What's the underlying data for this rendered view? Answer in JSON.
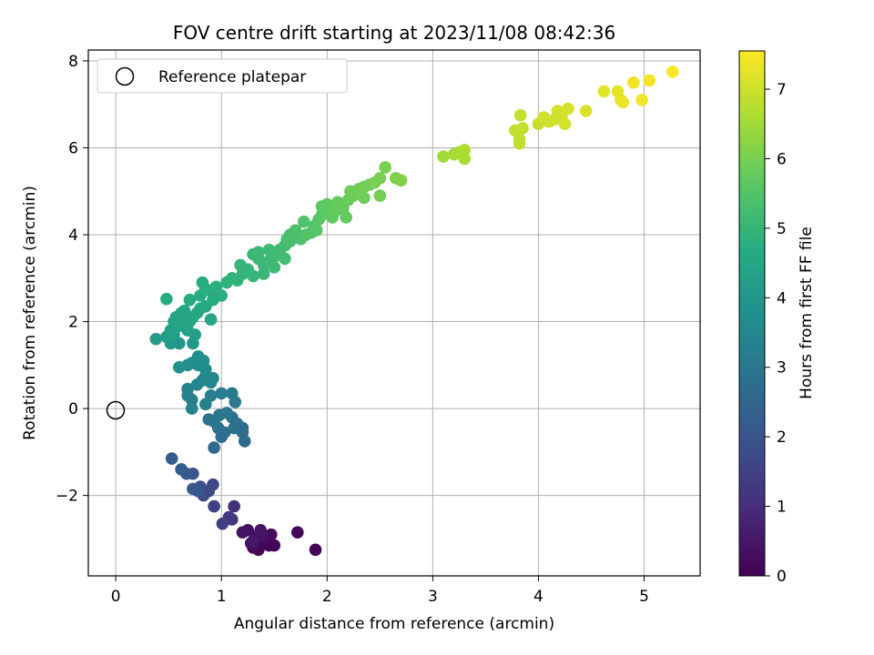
{
  "chart_data": {
    "type": "scatter",
    "title": "FOV centre drift starting at 2023/11/08 08:42:36",
    "xlabel": "Angular distance from reference (arcmin)",
    "ylabel": "Rotation from reference (arcmin)",
    "xlim": [
      -0.26,
      5.53
    ],
    "ylim": [
      -3.85,
      8.25
    ],
    "xticks": [
      "0",
      "1",
      "2",
      "3",
      "4",
      "5"
    ],
    "yticks": [
      "−2",
      "0",
      "2",
      "4",
      "6",
      "8"
    ],
    "grid": true,
    "legend": {
      "placement": "upper-left",
      "entries": [
        "Reference platepar"
      ]
    },
    "reference_point": {
      "label": "Reference platepar",
      "x": 0.0,
      "y": 0.0
    },
    "colorbar": {
      "label": "Hours from first FF file",
      "range": [
        0,
        7.55
      ],
      "ticks": [
        "0",
        "1",
        "2",
        "3",
        "4",
        "5",
        "6",
        "7"
      ],
      "colormap": "viridis"
    },
    "points": [
      [
        1.89,
        -3.25,
        0.05
      ],
      [
        1.72,
        -2.85,
        0.15
      ],
      [
        1.5,
        -3.15,
        0.1
      ],
      [
        1.45,
        -3.15,
        0.12
      ],
      [
        1.47,
        -2.9,
        0.2
      ],
      [
        1.38,
        -3.05,
        0.15
      ],
      [
        1.35,
        -3.25,
        0.1
      ],
      [
        1.3,
        -3.2,
        0.18
      ],
      [
        1.33,
        -2.95,
        0.25
      ],
      [
        1.25,
        -2.8,
        0.3
      ],
      [
        1.28,
        -3.1,
        0.22
      ],
      [
        1.2,
        -2.85,
        0.4
      ],
      [
        1.4,
        -2.95,
        0.35
      ],
      [
        1.37,
        -2.8,
        0.45
      ],
      [
        1.3,
        -3.05,
        0.5
      ],
      [
        1.12,
        -2.25,
        1.1
      ],
      [
        1.1,
        -2.55,
        1.2
      ],
      [
        1.07,
        -2.5,
        1.3
      ],
      [
        1.01,
        -2.65,
        1.4
      ],
      [
        0.93,
        -2.25,
        1.5
      ],
      [
        0.92,
        -1.75,
        1.6
      ],
      [
        0.88,
        -1.9,
        1.7
      ],
      [
        0.83,
        -2.0,
        1.8
      ],
      [
        0.8,
        -1.8,
        1.9
      ],
      [
        0.73,
        -1.5,
        2.0
      ],
      [
        0.73,
        -1.85,
        2.1
      ],
      [
        0.67,
        -1.5,
        2.15
      ],
      [
        0.62,
        -1.4,
        2.2
      ],
      [
        0.53,
        -1.15,
        2.25
      ],
      [
        0.78,
        -1.9,
        2.05
      ],
      [
        0.93,
        -0.9,
        2.6
      ],
      [
        1.0,
        -0.65,
        2.7
      ],
      [
        1.03,
        -0.55,
        2.75
      ],
      [
        0.97,
        -0.45,
        2.85
      ],
      [
        0.88,
        -0.25,
        2.9
      ],
      [
        0.98,
        -0.15,
        3.0
      ],
      [
        1.1,
        -0.2,
        2.9
      ],
      [
        1.12,
        -0.45,
        2.8
      ],
      [
        1.15,
        -0.35,
        2.85
      ],
      [
        1.2,
        -0.55,
        2.75
      ],
      [
        1.22,
        -0.75,
        2.65
      ],
      [
        1.2,
        -0.45,
        2.7
      ],
      [
        1.05,
        -0.1,
        3.0
      ],
      [
        0.93,
        -0.3,
        2.95
      ],
      [
        1.13,
        0.15,
        3.1
      ],
      [
        1.1,
        0.35,
        3.15
      ],
      [
        1.0,
        0.35,
        3.2
      ],
      [
        0.9,
        0.3,
        3.2
      ],
      [
        0.85,
        0.1,
        3.3
      ],
      [
        0.72,
        0.0,
        3.35
      ],
      [
        0.72,
        0.2,
        3.3
      ],
      [
        0.68,
        0.3,
        3.35
      ],
      [
        0.68,
        0.45,
        3.4
      ],
      [
        0.77,
        0.55,
        3.45
      ],
      [
        0.82,
        0.65,
        3.5
      ],
      [
        0.85,
        0.75,
        3.55
      ],
      [
        0.92,
        0.7,
        3.5
      ],
      [
        0.85,
        0.9,
        3.6
      ],
      [
        0.78,
        1.0,
        3.65
      ],
      [
        0.83,
        1.1,
        3.7
      ],
      [
        0.72,
        1.05,
        3.7
      ],
      [
        0.68,
        1.0,
        3.75
      ],
      [
        0.78,
        1.2,
        3.8
      ],
      [
        0.6,
        0.95,
        3.85
      ],
      [
        0.9,
        0.6,
        3.5
      ],
      [
        0.38,
        1.6,
        4.2
      ],
      [
        0.48,
        1.65,
        4.15
      ],
      [
        0.52,
        1.5,
        4.1
      ],
      [
        0.55,
        1.7,
        4.25
      ],
      [
        0.6,
        1.5,
        4.05
      ],
      [
        0.73,
        1.5,
        4.0
      ],
      [
        0.75,
        1.7,
        4.2
      ],
      [
        0.55,
        2.0,
        4.35
      ],
      [
        0.52,
        1.8,
        4.3
      ],
      [
        0.57,
        2.1,
        4.4
      ],
      [
        0.6,
        1.9,
        4.4
      ],
      [
        0.62,
        2.2,
        4.45
      ],
      [
        0.65,
        2.0,
        4.45
      ],
      [
        0.68,
        1.8,
        4.35
      ],
      [
        0.7,
        2.0,
        4.5
      ],
      [
        0.73,
        2.1,
        4.5
      ],
      [
        0.77,
        2.2,
        4.55
      ],
      [
        0.8,
        2.3,
        4.6
      ],
      [
        0.85,
        2.35,
        4.6
      ],
      [
        0.9,
        2.05,
        4.5
      ],
      [
        0.7,
        2.5,
        4.65
      ],
      [
        0.8,
        2.6,
        4.7
      ],
      [
        0.85,
        2.75,
        4.75
      ],
      [
        0.9,
        2.7,
        4.75
      ],
      [
        0.95,
        2.8,
        4.8
      ],
      [
        1.0,
        2.6,
        4.8
      ],
      [
        1.05,
        2.9,
        4.85
      ],
      [
        1.1,
        3.0,
        4.9
      ],
      [
        1.15,
        2.95,
        4.9
      ],
      [
        0.82,
        2.9,
        4.7
      ],
      [
        0.48,
        2.52,
        4.7
      ],
      [
        0.65,
        2.25,
        4.5
      ],
      [
        0.92,
        2.5,
        4.65
      ],
      [
        1.2,
        3.1,
        4.95
      ],
      [
        1.18,
        3.3,
        5.0
      ],
      [
        1.25,
        3.2,
        5.0
      ],
      [
        1.3,
        3.05,
        5.0
      ],
      [
        1.3,
        3.55,
        5.05
      ],
      [
        1.35,
        3.45,
        5.1
      ],
      [
        1.4,
        3.3,
        5.1
      ],
      [
        1.35,
        3.6,
        5.1
      ],
      [
        1.4,
        3.1,
        5.05
      ],
      [
        1.45,
        3.4,
        5.15
      ],
      [
        1.45,
        3.65,
        5.15
      ],
      [
        1.5,
        3.5,
        5.2
      ],
      [
        1.5,
        3.25,
        5.15
      ],
      [
        1.55,
        3.55,
        5.2
      ],
      [
        1.6,
        3.45,
        5.25
      ],
      [
        1.6,
        3.75,
        5.25
      ],
      [
        1.65,
        3.85,
        5.3
      ],
      [
        1.65,
        4.0,
        5.35
      ],
      [
        1.62,
        3.9,
        5.3
      ],
      [
        1.7,
        4.1,
        5.4
      ],
      [
        1.75,
        3.9,
        5.4
      ],
      [
        1.78,
        4.3,
        5.45
      ],
      [
        1.8,
        4.0,
        5.45
      ],
      [
        1.85,
        4.05,
        5.5
      ],
      [
        1.88,
        4.2,
        5.5
      ],
      [
        1.9,
        4.1,
        5.55
      ],
      [
        1.92,
        4.35,
        5.55
      ],
      [
        1.95,
        4.45,
        5.6
      ],
      [
        1.95,
        4.65,
        5.65
      ],
      [
        2.0,
        4.5,
        5.65
      ],
      [
        2.03,
        4.6,
        5.7
      ],
      [
        2.05,
        4.4,
        5.7
      ],
      [
        2.08,
        4.55,
        5.75
      ],
      [
        2.1,
        4.75,
        5.8
      ],
      [
        2.15,
        4.7,
        5.8
      ],
      [
        2.15,
        4.6,
        5.75
      ],
      [
        2.18,
        4.4,
        5.75
      ],
      [
        2.2,
        4.8,
        5.85
      ],
      [
        2.22,
        5.0,
        5.85
      ],
      [
        2.25,
        4.9,
        5.85
      ],
      [
        2.3,
        5.05,
        5.9
      ],
      [
        2.35,
        5.1,
        5.95
      ],
      [
        2.35,
        4.85,
        5.9
      ],
      [
        2.4,
        5.15,
        5.95
      ],
      [
        2.45,
        5.2,
        6.0
      ],
      [
        2.5,
        4.9,
        5.95
      ],
      [
        2.5,
        5.3,
        6.0
      ],
      [
        2.55,
        5.55,
        6.0
      ],
      [
        2.65,
        5.3,
        6.05
      ],
      [
        2.7,
        5.25,
        6.1
      ],
      [
        1.55,
        3.65,
        5.2
      ],
      [
        2.0,
        4.7,
        5.7
      ],
      [
        3.1,
        5.8,
        6.5
      ],
      [
        3.2,
        5.85,
        6.55
      ],
      [
        3.25,
        5.9,
        6.6
      ],
      [
        3.3,
        5.75,
        6.6
      ],
      [
        3.3,
        5.95,
        6.65
      ],
      [
        3.78,
        6.4,
        6.85
      ],
      [
        3.82,
        6.1,
        6.85
      ],
      [
        3.85,
        6.45,
        6.9
      ],
      [
        3.83,
        6.75,
        6.9
      ],
      [
        4.0,
        6.55,
        6.95
      ],
      [
        4.05,
        6.7,
        7.0
      ],
      [
        4.1,
        6.6,
        7.0
      ],
      [
        4.18,
        6.85,
        7.05
      ],
      [
        4.22,
        6.75,
        7.05
      ],
      [
        4.25,
        6.55,
        7.1
      ],
      [
        4.28,
        6.9,
        7.1
      ],
      [
        4.45,
        6.85,
        7.15
      ],
      [
        4.62,
        7.3,
        7.25
      ],
      [
        4.75,
        7.3,
        7.3
      ],
      [
        4.78,
        7.1,
        7.3
      ],
      [
        4.8,
        7.05,
        7.35
      ],
      [
        4.9,
        7.5,
        7.4
      ],
      [
        4.98,
        7.1,
        7.4
      ],
      [
        5.05,
        7.55,
        7.45
      ],
      [
        5.27,
        7.75,
        7.55
      ],
      [
        3.82,
        6.2,
        6.85
      ],
      [
        4.15,
        6.65,
        7.0
      ]
    ]
  }
}
